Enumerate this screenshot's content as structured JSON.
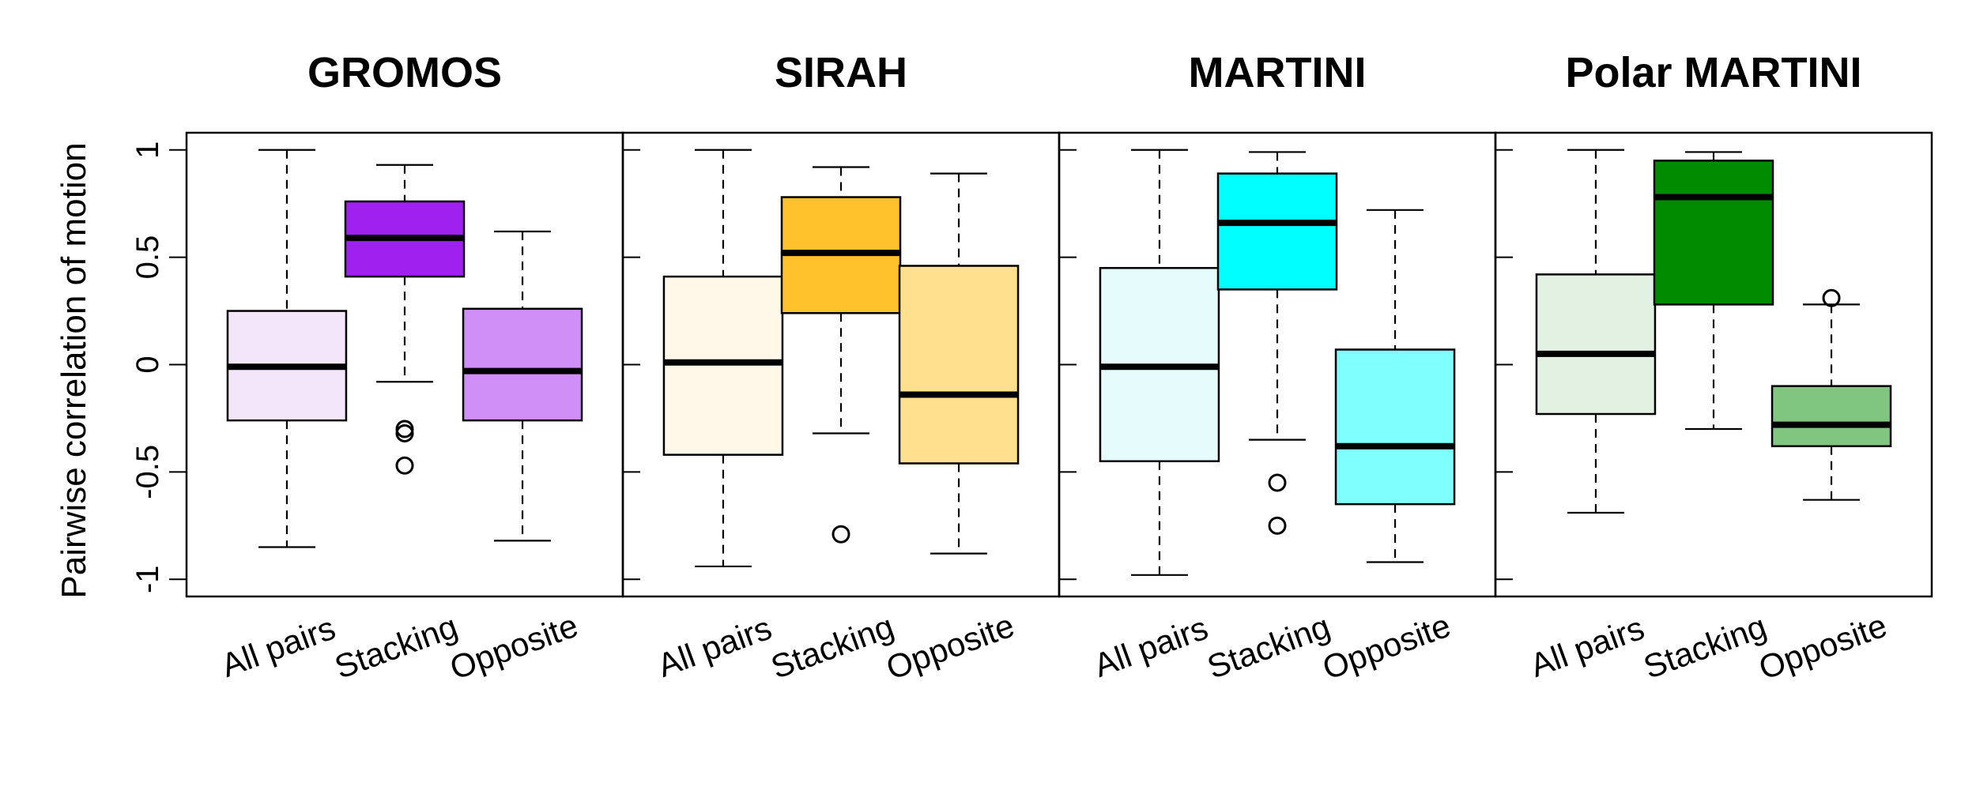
{
  "chart_data": {
    "type": "boxplot",
    "ylabel": "Pairwise correlation of motion",
    "ylim": [
      -1.08,
      1.08
    ],
    "yticks": [
      {
        "value": 1,
        "label": "1"
      },
      {
        "value": 0.5,
        "label": "0.5"
      },
      {
        "value": 0,
        "label": "0"
      },
      {
        "value": -0.5,
        "label": "-0.5"
      },
      {
        "value": -1,
        "label": "-1"
      }
    ],
    "categories": [
      "All pairs",
      "Stacking",
      "Opposite"
    ],
    "panels": [
      {
        "title": "GROMOS",
        "boxes": [
          {
            "category": "All pairs",
            "whisker_low": -0.85,
            "q1": -0.26,
            "median": -0.01,
            "q3": 0.25,
            "whisker_high": 1.0,
            "outliers": [],
            "color": "#f3e6fa"
          },
          {
            "category": "Stacking",
            "whisker_low": -0.08,
            "q1": 0.41,
            "median": 0.59,
            "q3": 0.76,
            "whisker_high": 0.93,
            "outliers": [
              -0.3,
              -0.32,
              -0.47
            ],
            "color": "#a020f0"
          },
          {
            "category": "Opposite",
            "whisker_low": -0.82,
            "q1": -0.26,
            "median": -0.03,
            "q3": 0.26,
            "whisker_high": 0.62,
            "outliers": [],
            "color": "#cf8ff7"
          }
        ]
      },
      {
        "title": "SIRAH",
        "boxes": [
          {
            "category": "All pairs",
            "whisker_low": -0.94,
            "q1": -0.42,
            "median": 0.01,
            "q3": 0.41,
            "whisker_high": 1.0,
            "outliers": [],
            "color": "#fff8e8"
          },
          {
            "category": "Stacking",
            "whisker_low": -0.32,
            "q1": 0.24,
            "median": 0.52,
            "q3": 0.78,
            "whisker_high": 0.92,
            "outliers": [
              -0.79
            ],
            "color": "#ffc22c"
          },
          {
            "category": "Opposite",
            "whisker_low": -0.88,
            "q1": -0.46,
            "median": -0.14,
            "q3": 0.46,
            "whisker_high": 0.89,
            "outliers": [],
            "color": "#ffe08f"
          }
        ]
      },
      {
        "title": "MARTINI",
        "boxes": [
          {
            "category": "All pairs",
            "whisker_low": -0.98,
            "q1": -0.45,
            "median": -0.01,
            "q3": 0.45,
            "whisker_high": 1.0,
            "outliers": [],
            "color": "#e6fcfc"
          },
          {
            "category": "Stacking",
            "whisker_low": -0.35,
            "q1": 0.35,
            "median": 0.66,
            "q3": 0.89,
            "whisker_high": 0.99,
            "outliers": [
              -0.55,
              -0.75
            ],
            "color": "#00ffff"
          },
          {
            "category": "Opposite",
            "whisker_low": -0.92,
            "q1": -0.65,
            "median": -0.38,
            "q3": 0.07,
            "whisker_high": 0.72,
            "outliers": [],
            "color": "#80ffff"
          }
        ]
      },
      {
        "title": "Polar MARTINI",
        "boxes": [
          {
            "category": "All pairs",
            "whisker_low": -0.69,
            "q1": -0.23,
            "median": 0.05,
            "q3": 0.42,
            "whisker_high": 1.0,
            "outliers": [],
            "color": "#e3f1e3"
          },
          {
            "category": "Stacking",
            "whisker_low": -0.3,
            "q1": 0.28,
            "median": 0.78,
            "q3": 0.95,
            "whisker_high": 0.99,
            "outliers": [],
            "color": "#008b00"
          },
          {
            "category": "Opposite",
            "whisker_low": -0.63,
            "q1": -0.38,
            "median": -0.28,
            "q3": -0.1,
            "whisker_high": 0.28,
            "outliers": [
              0.31
            ],
            "color": "#80c680"
          }
        ]
      }
    ],
    "grid": false,
    "legend": "none"
  }
}
